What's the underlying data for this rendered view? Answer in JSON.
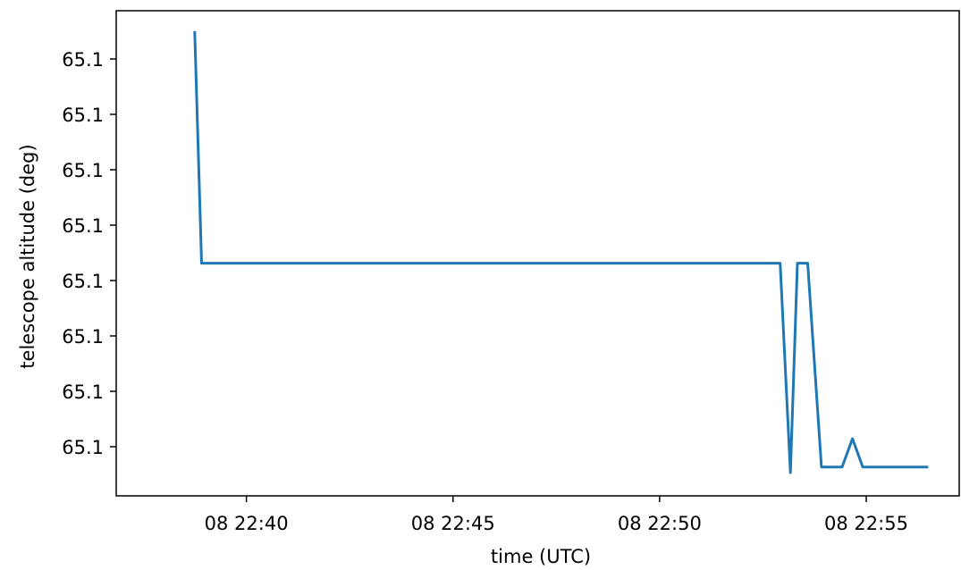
{
  "chart_data": {
    "type": "line",
    "title": "",
    "xlabel": "time (UTC)",
    "ylabel": "telescope altitude (deg)",
    "x_tick_labels": [
      "08 22:40",
      "08 22:45",
      "08 22:50",
      "08 22:55"
    ],
    "y_tick_labels": [
      "65.1",
      "65.1",
      "65.1",
      "65.1",
      "65.1",
      "65.1",
      "65.1",
      "65.1"
    ],
    "grid": false,
    "series": [
      {
        "color": "#1f77b4",
        "x": [
          "22:38:45",
          "22:38:55",
          "22:52:55",
          "22:53:10",
          "22:53:20",
          "22:53:35",
          "22:53:55",
          "22:54:25",
          "22:54:40",
          "22:54:55",
          "22:56:30"
        ],
        "y": [
          65.1168,
          65.1127,
          65.1127,
          65.109,
          65.1127,
          65.1127,
          65.1091,
          65.1091,
          65.1096,
          65.1091,
          65.1091
        ]
      }
    ]
  }
}
